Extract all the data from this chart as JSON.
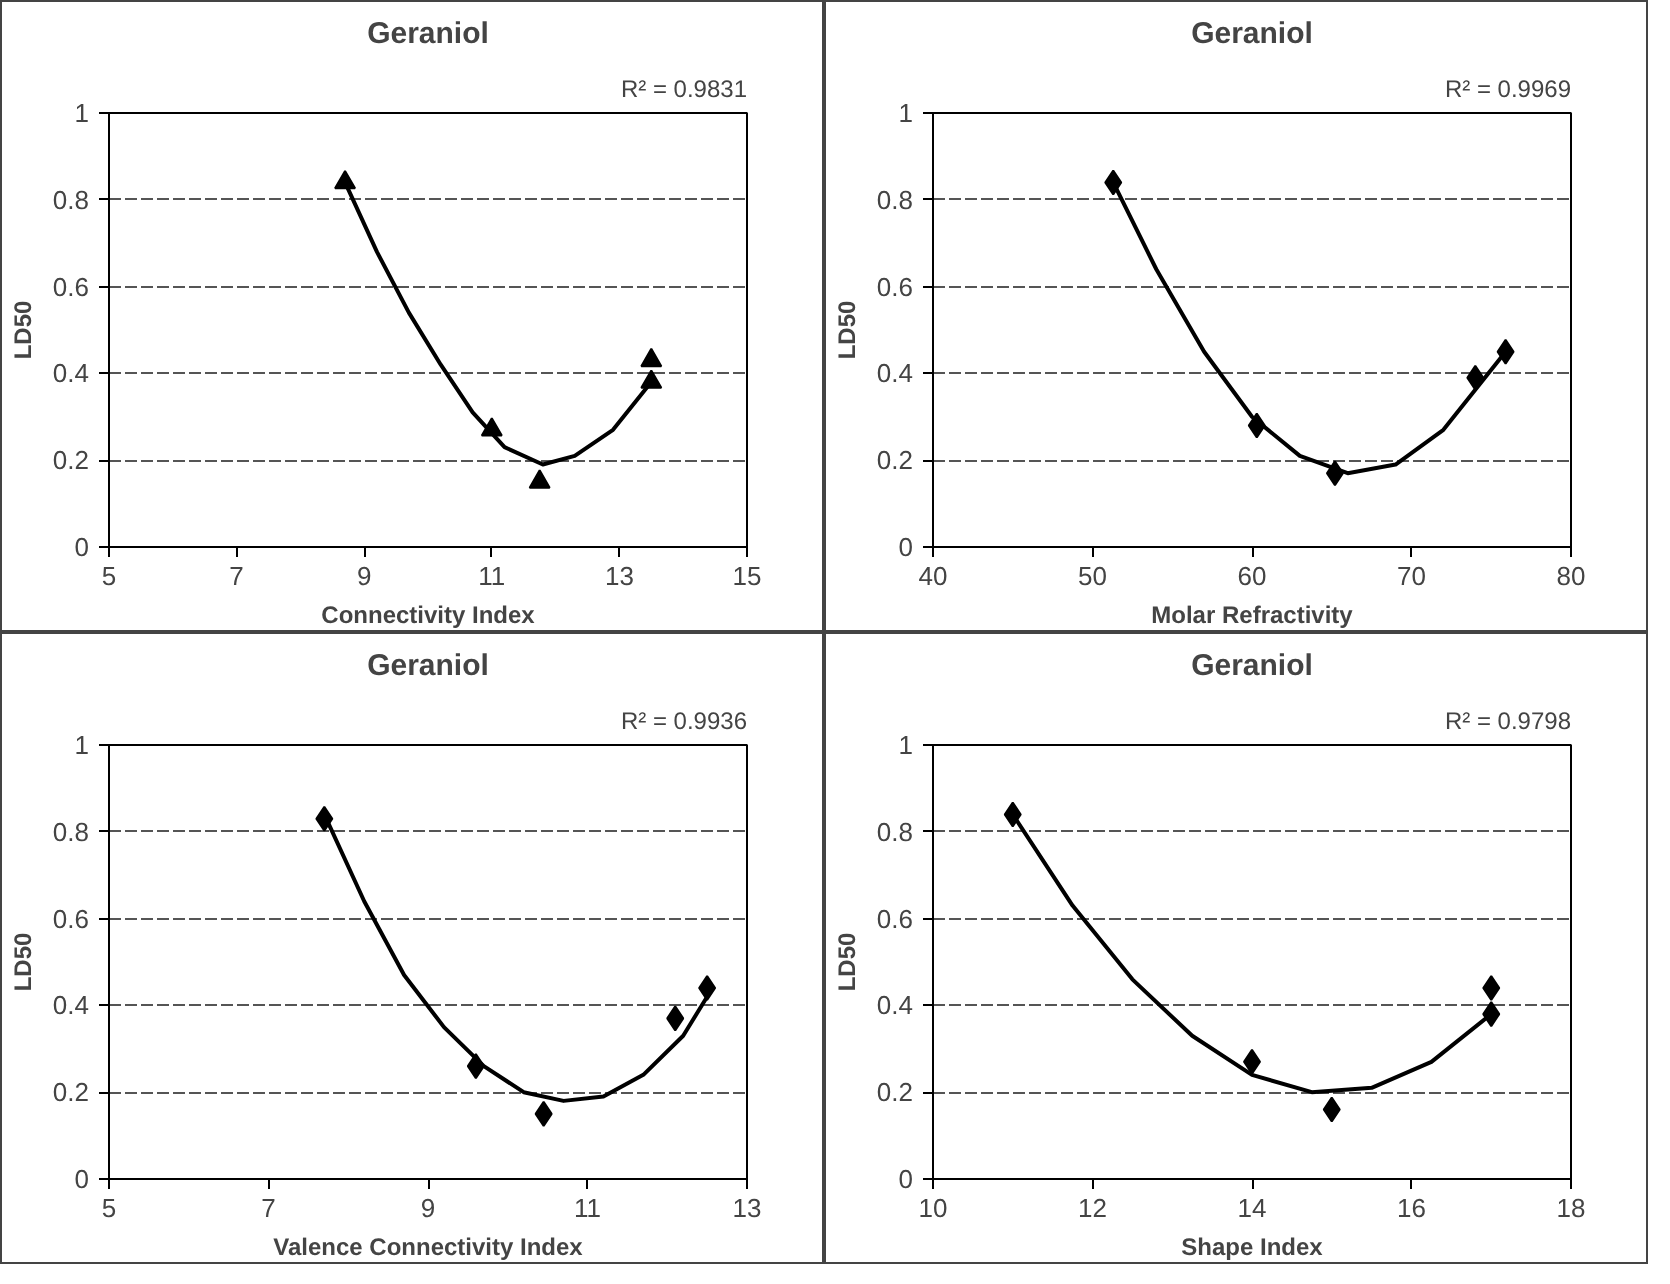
{
  "chart_data": [
    {
      "type": "scatter",
      "title": "Geraniol",
      "xlabel": "Connectivity Index",
      "ylabel": "LD50",
      "annotations": [
        "R² = 0.9831"
      ],
      "xlim": [
        5,
        15
      ],
      "xticks": [
        5,
        7,
        9,
        11,
        13,
        15
      ],
      "ylim": [
        0,
        1
      ],
      "yticks": [
        0,
        0.2,
        0.4,
        0.6,
        0.8,
        1
      ],
      "grid": "y",
      "series": [
        {
          "marker": "triangle",
          "color": "#000000",
          "x": [
            8.7,
            11,
            11.75,
            13.5,
            13.5
          ],
          "values": [
            0.84,
            0.27,
            0.15,
            0.38,
            0.43
          ]
        },
        {
          "type": "line",
          "marker": "none",
          "color": "#000000",
          "x": [
            8.7,
            9.2,
            9.7,
            10.2,
            10.7,
            11.2,
            11.8,
            12.3,
            12.9,
            13.5
          ],
          "values": [
            0.84,
            0.68,
            0.54,
            0.42,
            0.31,
            0.23,
            0.19,
            0.21,
            0.27,
            0.38
          ]
        }
      ]
    },
    {
      "type": "scatter",
      "title": "Geraniol",
      "xlabel": "Molar Refractivity",
      "ylabel": "LD50",
      "annotations": [
        "R² = 0.9969"
      ],
      "xlim": [
        40,
        80
      ],
      "xticks": [
        40,
        50,
        60,
        70,
        80
      ],
      "ylim": [
        0,
        1
      ],
      "yticks": [
        0,
        0.2,
        0.4,
        0.6,
        0.8,
        1
      ],
      "grid": "y",
      "series": [
        {
          "marker": "diamond",
          "color": "#000000",
          "x": [
            51.3,
            60.3,
            65.2,
            74,
            75.9
          ],
          "values": [
            0.84,
            0.28,
            0.17,
            0.39,
            0.45
          ]
        },
        {
          "type": "line",
          "marker": "none",
          "color": "#000000",
          "x": [
            51.3,
            54,
            57,
            60,
            63,
            66,
            69,
            72,
            75.9
          ],
          "values": [
            0.84,
            0.64,
            0.45,
            0.3,
            0.21,
            0.17,
            0.19,
            0.27,
            0.45
          ]
        }
      ]
    },
    {
      "type": "scatter",
      "title": "Geraniol",
      "xlabel": "Valence Connectivity Index",
      "ylabel": "LD50",
      "annotations": [
        "R² = 0.9936"
      ],
      "xlim": [
        5,
        13
      ],
      "xticks": [
        5,
        7,
        9,
        11,
        13
      ],
      "ylim": [
        0,
        1
      ],
      "yticks": [
        0,
        0.2,
        0.4,
        0.6,
        0.8,
        1
      ],
      "grid": "y",
      "series": [
        {
          "marker": "diamond",
          "color": "#000000",
          "x": [
            7.7,
            9.6,
            10.45,
            12.1,
            12.5
          ],
          "values": [
            0.83,
            0.26,
            0.15,
            0.37,
            0.44
          ]
        },
        {
          "type": "line",
          "marker": "none",
          "color": "#000000",
          "x": [
            7.7,
            8.2,
            8.7,
            9.2,
            9.7,
            10.2,
            10.7,
            11.2,
            11.7,
            12.2,
            12.5
          ],
          "values": [
            0.84,
            0.64,
            0.47,
            0.35,
            0.26,
            0.2,
            0.18,
            0.19,
            0.24,
            0.33,
            0.42
          ]
        }
      ]
    },
    {
      "type": "scatter",
      "title": "Geraniol",
      "xlabel": "Shape Index",
      "ylabel": "LD50",
      "annotations": [
        "R² = 0.9798"
      ],
      "xlim": [
        10,
        18
      ],
      "xticks": [
        10,
        12,
        14,
        16,
        18
      ],
      "ylim": [
        0,
        1
      ],
      "yticks": [
        0,
        0.2,
        0.4,
        0.6,
        0.8,
        1
      ],
      "grid": "y",
      "series": [
        {
          "marker": "diamond",
          "color": "#000000",
          "x": [
            11,
            14,
            15,
            17,
            17
          ],
          "values": [
            0.84,
            0.27,
            0.16,
            0.38,
            0.44
          ]
        },
        {
          "type": "line",
          "marker": "none",
          "color": "#000000",
          "x": [
            11,
            11.75,
            12.5,
            13.25,
            14,
            14.75,
            15.5,
            16.25,
            17
          ],
          "values": [
            0.84,
            0.63,
            0.46,
            0.33,
            0.24,
            0.2,
            0.21,
            0.27,
            0.38
          ]
        }
      ]
    }
  ]
}
